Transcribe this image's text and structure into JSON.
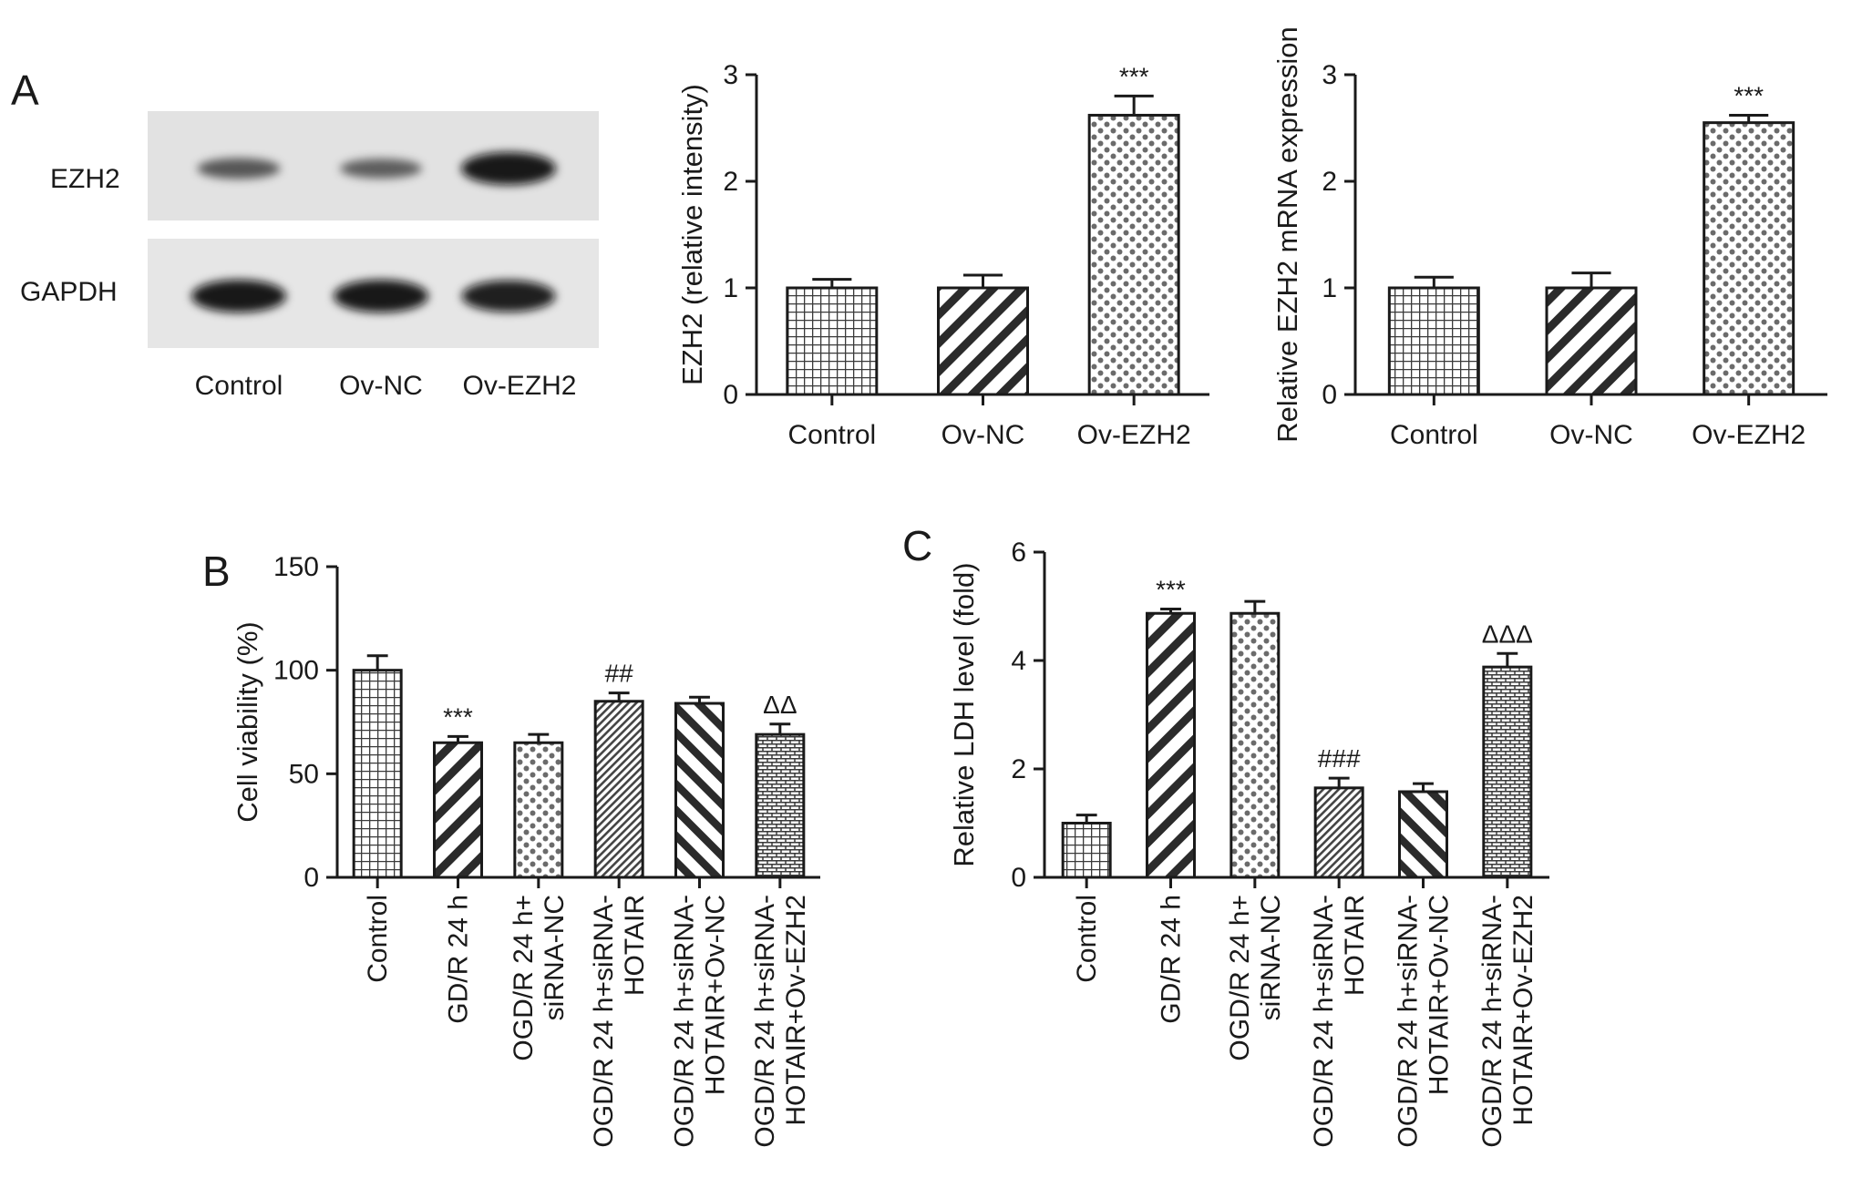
{
  "panels": {
    "A": "A",
    "B": "B",
    "C": "C"
  },
  "western_blot": {
    "rows": [
      "EZH2",
      "GAPDH"
    ],
    "lanes": [
      "Control",
      "Ov-NC",
      "Ov-EZH2"
    ],
    "band_intensity": {
      "EZH2": [
        0.45,
        0.4,
        1.0
      ],
      "GAPDH": [
        1.0,
        1.0,
        0.95
      ]
    }
  },
  "chart_data": [
    {
      "id": "A-protein",
      "type": "bar",
      "categories": [
        "Control",
        "Ov-NC",
        "Ov-EZH2"
      ],
      "values": [
        1.0,
        1.0,
        2.62
      ],
      "errors": [
        0.08,
        0.12,
        0.18
      ],
      "significance": [
        "",
        "",
        "***"
      ],
      "patterns": [
        "grid",
        "diag",
        "dots"
      ],
      "ylabel": "EZH2 (relative intensity)",
      "xlabel": "",
      "ylim": [
        0,
        3
      ],
      "yticks": [
        0,
        1,
        2,
        3
      ],
      "rotate_labels": false
    },
    {
      "id": "A-mrna",
      "type": "bar",
      "categories": [
        "Control",
        "Ov-NC",
        "Ov-EZH2"
      ],
      "values": [
        1.0,
        1.0,
        2.55
      ],
      "errors": [
        0.1,
        0.14,
        0.07
      ],
      "significance": [
        "",
        "",
        "***"
      ],
      "patterns": [
        "grid",
        "diag",
        "dots"
      ],
      "ylabel": "Relative EZH2 mRNA expression",
      "xlabel": "",
      "ylim": [
        0,
        3
      ],
      "yticks": [
        0,
        1,
        2,
        3
      ],
      "rotate_labels": false
    },
    {
      "id": "B",
      "type": "bar",
      "categories": [
        [
          "Control"
        ],
        [
          "GD/R 24 h"
        ],
        [
          "OGD/R 24 h+",
          "siRNA-NC"
        ],
        [
          "OGD/R 24 h+siRNA-",
          "HOTAIR"
        ],
        [
          "OGD/R 24 h+siRNA-",
          "HOTAIR+Ov-NC"
        ],
        [
          "OGD/R 24 h+siRNA-",
          "HOTAIR+Ov-EZH2"
        ]
      ],
      "values": [
        100,
        65,
        65,
        85,
        84,
        69
      ],
      "errors": [
        7,
        3,
        4,
        4,
        3,
        5
      ],
      "significance": [
        "",
        "***",
        "",
        "##",
        "",
        "ΔΔ"
      ],
      "patterns": [
        "grid",
        "diag",
        "dots",
        "fine-diag",
        "back-diag",
        "brick"
      ],
      "ylabel": "Cell viability (%)",
      "xlabel": "",
      "ylim": [
        0,
        150
      ],
      "yticks": [
        0,
        50,
        100,
        150
      ],
      "rotate_labels": true
    },
    {
      "id": "C",
      "type": "bar",
      "categories": [
        [
          "Control"
        ],
        [
          "GD/R 24 h"
        ],
        [
          "OGD/R 24 h+",
          "siRNA-NC"
        ],
        [
          "OGD/R 24 h+siRNA-",
          "HOTAIR"
        ],
        [
          "OGD/R 24 h+siRNA-",
          "HOTAIR+Ov-NC"
        ],
        [
          "OGD/R 24 h+siRNA-",
          "HOTAIR+Ov-EZH2"
        ]
      ],
      "values": [
        1.0,
        4.87,
        4.87,
        1.65,
        1.58,
        3.88
      ],
      "errors": [
        0.15,
        0.08,
        0.22,
        0.18,
        0.15,
        0.25
      ],
      "significance": [
        "",
        "***",
        "",
        "###",
        "",
        "ΔΔΔ"
      ],
      "patterns": [
        "grid",
        "diag",
        "dots",
        "fine-diag",
        "back-diag",
        "brick"
      ],
      "ylabel": "Relative LDH level (fold)",
      "xlabel": "",
      "ylim": [
        0,
        6
      ],
      "yticks": [
        0,
        2,
        4,
        6
      ],
      "rotate_labels": true
    }
  ]
}
